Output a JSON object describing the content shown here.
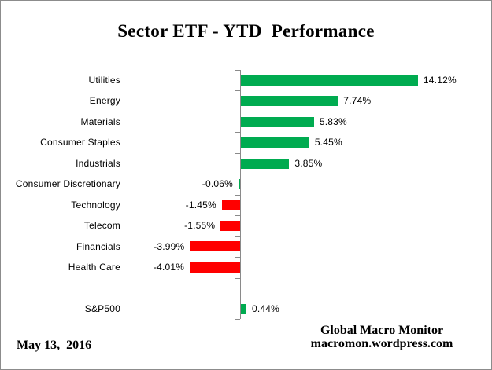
{
  "title": "Sector ETF - YTD  Performance",
  "footer": {
    "date": "May 13,  2016",
    "brand_line1": "Global Macro Monitor",
    "brand_line2": "macromon.wordpress.com"
  },
  "colors": {
    "positive_bar": "#00AB50",
    "negative_bar": "#FF0000",
    "axis": "#8A8A8A",
    "text": "#000000",
    "frame_border": "#8C8C8C"
  },
  "chart_data": {
    "type": "bar",
    "orientation": "horizontal",
    "title": "Sector ETF - YTD  Performance",
    "xlabel": "",
    "ylabel": "",
    "grid": false,
    "legend": false,
    "value_suffix": "%",
    "categories": [
      "Utilities",
      "Energy",
      "Materials",
      "Consumer Staples",
      "Industrials",
      "Consumer Discretionary",
      "Technology",
      "Telecom",
      "Financials",
      "Health Care",
      "",
      "S&P500"
    ],
    "values": [
      14.12,
      7.74,
      5.83,
      5.45,
      3.85,
      -0.06,
      -1.45,
      -1.55,
      -3.99,
      -4.01,
      null,
      0.44
    ],
    "value_labels": [
      "14.12%",
      "7.74%",
      "5.83%",
      "5.45%",
      "3.85%",
      "-0.06%",
      "-1.45%",
      "-1.55%",
      "-3.99%",
      "-4.01%",
      null,
      "0.44%"
    ],
    "bar_colors": [
      "#00AB50",
      "#00AB50",
      "#00AB50",
      "#00AB50",
      "#00AB50",
      "#00AB50",
      "#FF0000",
      "#FF0000",
      "#FF0000",
      "#FF0000",
      null,
      "#00AB50"
    ]
  }
}
